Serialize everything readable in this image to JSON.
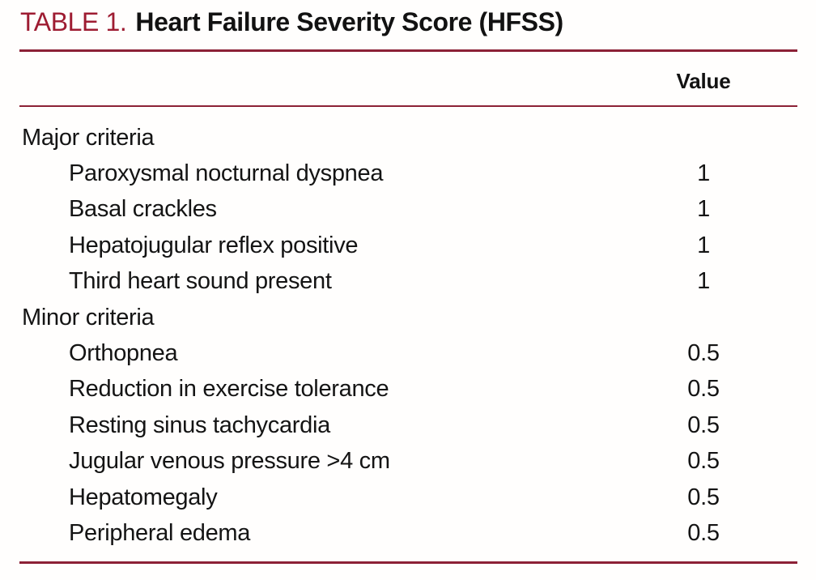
{
  "title": {
    "label": "TABLE 1.",
    "heading": "Heart Failure Severity Score (HFSS)"
  },
  "colors": {
    "accent": "#9E1C32",
    "rule": "#8C2136",
    "text": "#141414"
  },
  "table": {
    "value_header": "Value",
    "sections": [
      {
        "header": "Major criteria",
        "rows": [
          {
            "label": "Paroxysmal nocturnal dyspnea",
            "value": "1"
          },
          {
            "label": "Basal crackles",
            "value": "1"
          },
          {
            "label": "Hepatojugular reflex positive",
            "value": "1"
          },
          {
            "label": "Third heart sound present",
            "value": "1"
          }
        ]
      },
      {
        "header": "Minor criteria",
        "rows": [
          {
            "label": "Orthopnea",
            "value": "0.5"
          },
          {
            "label": "Reduction in exercise tolerance",
            "value": "0.5"
          },
          {
            "label": "Resting sinus tachycardia",
            "value": "0.5"
          },
          {
            "label": "Jugular venous pressure >4 cm",
            "value": "0.5"
          },
          {
            "label": "Hepatomegaly",
            "value": "0.5"
          },
          {
            "label": "Peripheral edema",
            "value": "0.5"
          }
        ]
      }
    ]
  }
}
